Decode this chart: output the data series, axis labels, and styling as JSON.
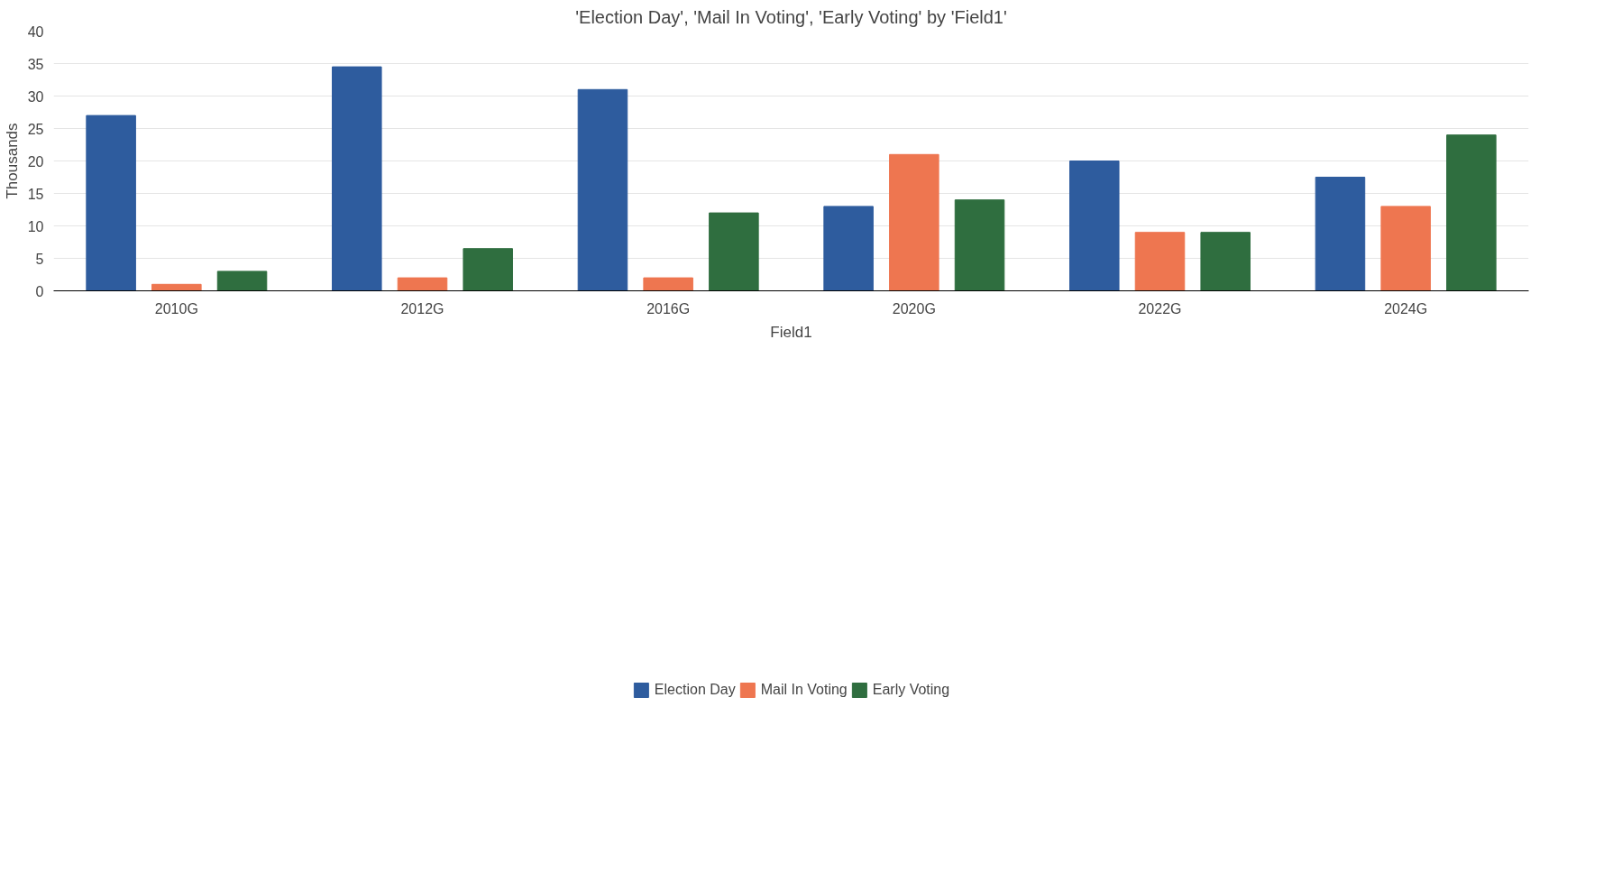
{
  "chart_data": {
    "type": "bar",
    "title": "'Election Day', 'Mail In Voting', 'Early Voting' by 'Field1'",
    "xlabel": "Field1",
    "ylabel": "Thousands",
    "categories": [
      "2010G",
      "2012G",
      "2016G",
      "2020G",
      "2022G",
      "2024G"
    ],
    "series": [
      {
        "name": "Election Day",
        "color": "#2e5c9e",
        "values": [
          27,
          34.5,
          31,
          13,
          20,
          17.5
        ]
      },
      {
        "name": "Mail In Voting",
        "color": "#ee7650",
        "values": [
          1,
          2,
          2,
          21,
          9,
          13
        ]
      },
      {
        "name": "Early Voting",
        "color": "#2f6e3f",
        "values": [
          3,
          6.5,
          12,
          14,
          9,
          24
        ]
      }
    ],
    "ylim": [
      0,
      40
    ],
    "yticks": [
      0,
      5,
      10,
      15,
      20,
      25,
      30,
      35,
      40
    ],
    "grid": "y",
    "legend": "bottom"
  }
}
